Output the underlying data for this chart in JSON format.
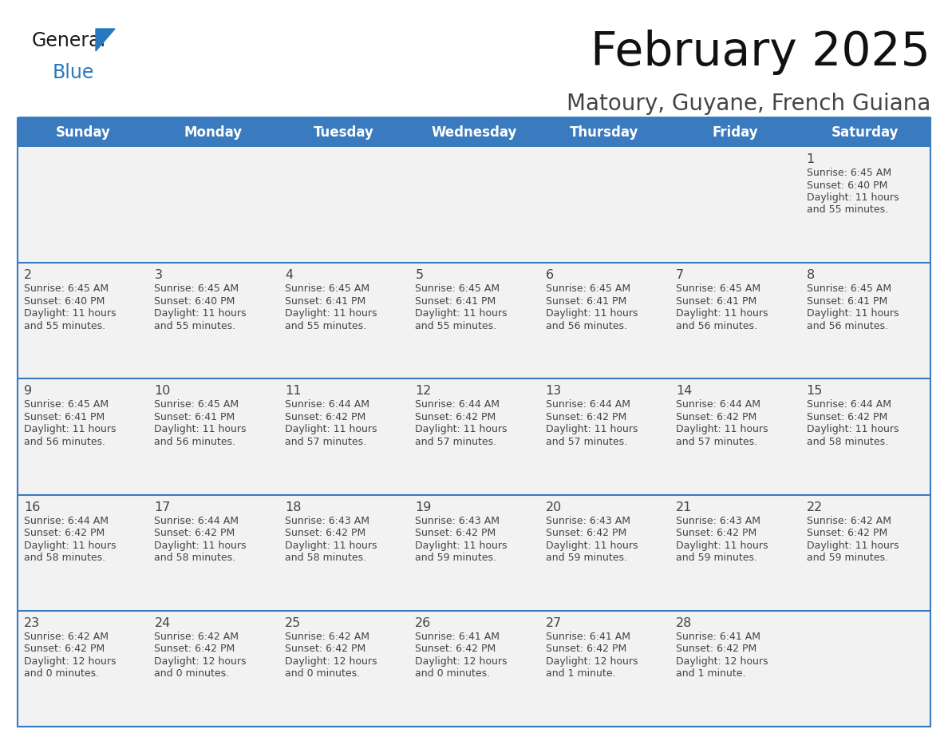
{
  "title": "February 2025",
  "subtitle": "Matoury, Guyane, French Guiana",
  "days_of_week": [
    "Sunday",
    "Monday",
    "Tuesday",
    "Wednesday",
    "Thursday",
    "Friday",
    "Saturday"
  ],
  "header_bg": "#3a7abf",
  "header_text": "#ffffff",
  "row_bg": "#f2f2f2",
  "row_bg_white": "#ffffff",
  "separator_color": "#3a7abf",
  "day_number_color": "#444444",
  "cell_text_color": "#444444",
  "title_color": "#111111",
  "subtitle_color": "#444444",
  "logo_general_color": "#1a1a1a",
  "logo_blue_color": "#2878be",
  "calendar_data": [
    {
      "day": 1,
      "col": 6,
      "row": 0,
      "sunrise": "6:45 AM",
      "sunset": "6:40 PM",
      "daylight": "11 hours and 55 minutes."
    },
    {
      "day": 2,
      "col": 0,
      "row": 1,
      "sunrise": "6:45 AM",
      "sunset": "6:40 PM",
      "daylight": "11 hours and 55 minutes."
    },
    {
      "day": 3,
      "col": 1,
      "row": 1,
      "sunrise": "6:45 AM",
      "sunset": "6:40 PM",
      "daylight": "11 hours and 55 minutes."
    },
    {
      "day": 4,
      "col": 2,
      "row": 1,
      "sunrise": "6:45 AM",
      "sunset": "6:41 PM",
      "daylight": "11 hours and 55 minutes."
    },
    {
      "day": 5,
      "col": 3,
      "row": 1,
      "sunrise": "6:45 AM",
      "sunset": "6:41 PM",
      "daylight": "11 hours and 55 minutes."
    },
    {
      "day": 6,
      "col": 4,
      "row": 1,
      "sunrise": "6:45 AM",
      "sunset": "6:41 PM",
      "daylight": "11 hours and 56 minutes."
    },
    {
      "day": 7,
      "col": 5,
      "row": 1,
      "sunrise": "6:45 AM",
      "sunset": "6:41 PM",
      "daylight": "11 hours and 56 minutes."
    },
    {
      "day": 8,
      "col": 6,
      "row": 1,
      "sunrise": "6:45 AM",
      "sunset": "6:41 PM",
      "daylight": "11 hours and 56 minutes."
    },
    {
      "day": 9,
      "col": 0,
      "row": 2,
      "sunrise": "6:45 AM",
      "sunset": "6:41 PM",
      "daylight": "11 hours and 56 minutes."
    },
    {
      "day": 10,
      "col": 1,
      "row": 2,
      "sunrise": "6:45 AM",
      "sunset": "6:41 PM",
      "daylight": "11 hours and 56 minutes."
    },
    {
      "day": 11,
      "col": 2,
      "row": 2,
      "sunrise": "6:44 AM",
      "sunset": "6:42 PM",
      "daylight": "11 hours and 57 minutes."
    },
    {
      "day": 12,
      "col": 3,
      "row": 2,
      "sunrise": "6:44 AM",
      "sunset": "6:42 PM",
      "daylight": "11 hours and 57 minutes."
    },
    {
      "day": 13,
      "col": 4,
      "row": 2,
      "sunrise": "6:44 AM",
      "sunset": "6:42 PM",
      "daylight": "11 hours and 57 minutes."
    },
    {
      "day": 14,
      "col": 5,
      "row": 2,
      "sunrise": "6:44 AM",
      "sunset": "6:42 PM",
      "daylight": "11 hours and 57 minutes."
    },
    {
      "day": 15,
      "col": 6,
      "row": 2,
      "sunrise": "6:44 AM",
      "sunset": "6:42 PM",
      "daylight": "11 hours and 58 minutes."
    },
    {
      "day": 16,
      "col": 0,
      "row": 3,
      "sunrise": "6:44 AM",
      "sunset": "6:42 PM",
      "daylight": "11 hours and 58 minutes."
    },
    {
      "day": 17,
      "col": 1,
      "row": 3,
      "sunrise": "6:44 AM",
      "sunset": "6:42 PM",
      "daylight": "11 hours and 58 minutes."
    },
    {
      "day": 18,
      "col": 2,
      "row": 3,
      "sunrise": "6:43 AM",
      "sunset": "6:42 PM",
      "daylight": "11 hours and 58 minutes."
    },
    {
      "day": 19,
      "col": 3,
      "row": 3,
      "sunrise": "6:43 AM",
      "sunset": "6:42 PM",
      "daylight": "11 hours and 59 minutes."
    },
    {
      "day": 20,
      "col": 4,
      "row": 3,
      "sunrise": "6:43 AM",
      "sunset": "6:42 PM",
      "daylight": "11 hours and 59 minutes."
    },
    {
      "day": 21,
      "col": 5,
      "row": 3,
      "sunrise": "6:43 AM",
      "sunset": "6:42 PM",
      "daylight": "11 hours and 59 minutes."
    },
    {
      "day": 22,
      "col": 6,
      "row": 3,
      "sunrise": "6:42 AM",
      "sunset": "6:42 PM",
      "daylight": "11 hours and 59 minutes."
    },
    {
      "day": 23,
      "col": 0,
      "row": 4,
      "sunrise": "6:42 AM",
      "sunset": "6:42 PM",
      "daylight": "12 hours and 0 minutes."
    },
    {
      "day": 24,
      "col": 1,
      "row": 4,
      "sunrise": "6:42 AM",
      "sunset": "6:42 PM",
      "daylight": "12 hours and 0 minutes."
    },
    {
      "day": 25,
      "col": 2,
      "row": 4,
      "sunrise": "6:42 AM",
      "sunset": "6:42 PM",
      "daylight": "12 hours and 0 minutes."
    },
    {
      "day": 26,
      "col": 3,
      "row": 4,
      "sunrise": "6:41 AM",
      "sunset": "6:42 PM",
      "daylight": "12 hours and 0 minutes."
    },
    {
      "day": 27,
      "col": 4,
      "row": 4,
      "sunrise": "6:41 AM",
      "sunset": "6:42 PM",
      "daylight": "12 hours and 1 minute."
    },
    {
      "day": 28,
      "col": 5,
      "row": 4,
      "sunrise": "6:41 AM",
      "sunset": "6:42 PM",
      "daylight": "12 hours and 1 minute."
    }
  ],
  "num_rows": 5,
  "num_cols": 7,
  "figsize": [
    11.88,
    9.18
  ],
  "dpi": 100
}
